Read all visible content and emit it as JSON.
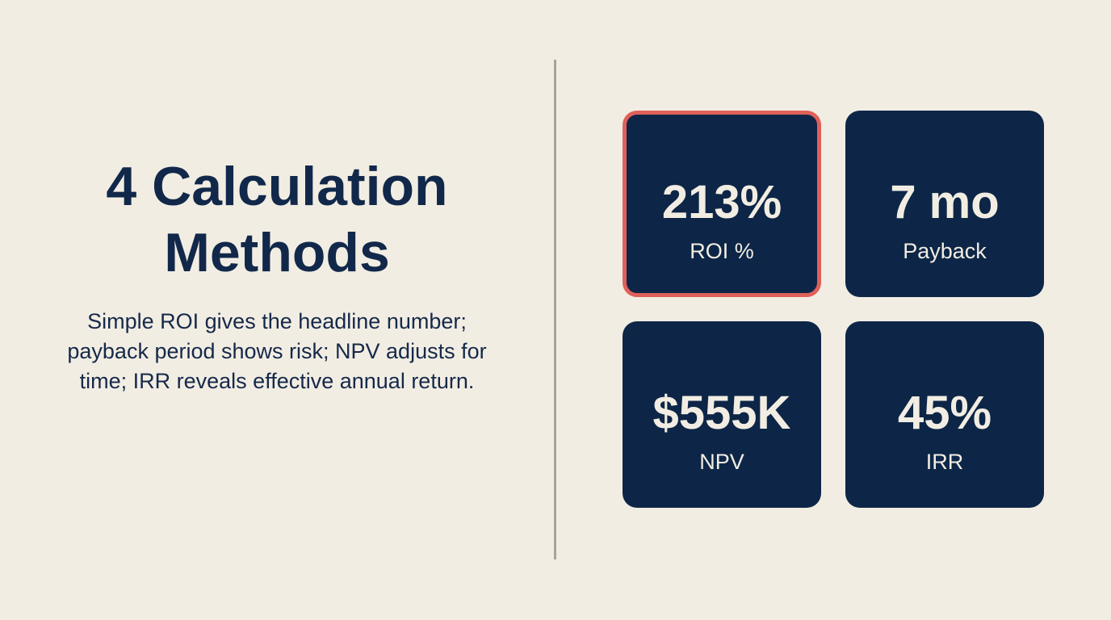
{
  "heading": {
    "line1": "4 Calculation",
    "line2": "Methods"
  },
  "description": "Simple ROI gives the headline number; payback period shows risk; NPV adjusts for time; IRR reveals effective annual return.",
  "metrics": [
    {
      "value": "213%",
      "label": "ROI %",
      "highlighted": true
    },
    {
      "value": "7 mo",
      "label": "Payback",
      "highlighted": false
    },
    {
      "value": "$555K",
      "label": "NPV",
      "highlighted": false
    },
    {
      "value": "45%",
      "label": "IRR",
      "highlighted": false
    }
  ],
  "colors": {
    "background": "#f2ede3",
    "card": "#0d2647",
    "highlight_border": "#e0605a",
    "text": "#11284a"
  }
}
